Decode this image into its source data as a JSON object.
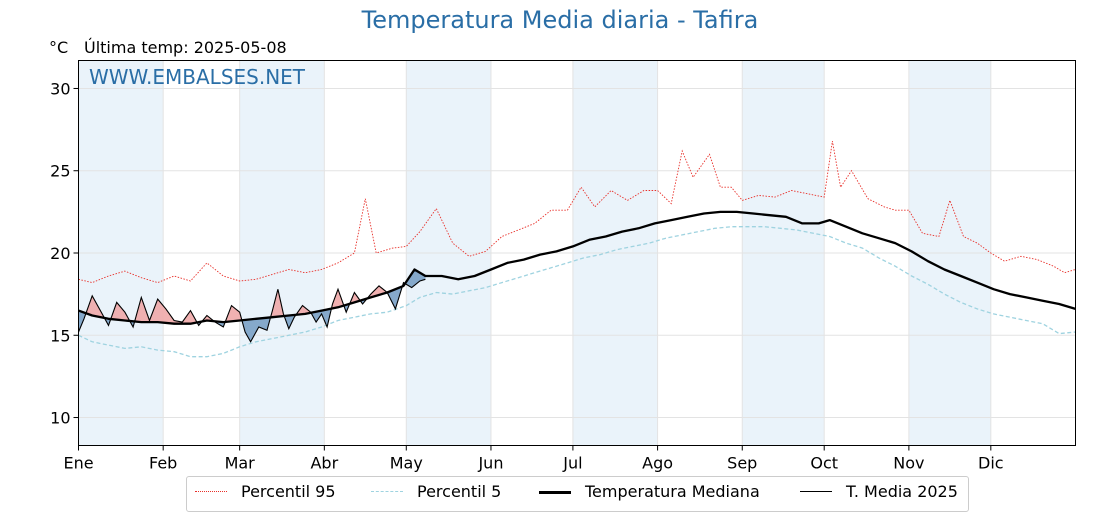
{
  "header": {
    "title": "Temperatura Media diaria - Tafira",
    "unit": "°C",
    "last_update": "Última temp: 2025-05-08"
  },
  "watermark": "WWW.EMBALSES.NET",
  "colors": {
    "p95": "#e8302a",
    "p5": "#9fd3e0",
    "median": "#000000",
    "current": "#000000",
    "above_fill": "#f0a8a8",
    "below_fill": "#7fa4c8",
    "title": "#2a6ea6",
    "band": "#eaf3fa"
  },
  "chart_data": {
    "type": "line",
    "x_tick_labels": [
      "Ene",
      "Feb",
      "Mar",
      "Abr",
      "May",
      "Jun",
      "Jul",
      "Ago",
      "Sep",
      "Oct",
      "Nov",
      "Dic"
    ],
    "month_start_days": [
      1,
      32,
      60,
      91,
      121,
      152,
      182,
      213,
      244,
      274,
      305,
      335
    ],
    "xlim": [
      1,
      366
    ],
    "ylim": [
      8.3,
      31.7
    ],
    "y_ticks": [
      10,
      15,
      20,
      25,
      30
    ],
    "grid": true,
    "legend_placement": "bottom-center",
    "series": [
      {
        "name": "Percentil 95",
        "style": "dotted-red",
        "points": [
          [
            1,
            18.4
          ],
          [
            6,
            18.2
          ],
          [
            12,
            18.6
          ],
          [
            18,
            18.9
          ],
          [
            24,
            18.5
          ],
          [
            30,
            18.2
          ],
          [
            36,
            18.6
          ],
          [
            42,
            18.3
          ],
          [
            48,
            19.4
          ],
          [
            54,
            18.6
          ],
          [
            60,
            18.3
          ],
          [
            66,
            18.4
          ],
          [
            72,
            18.7
          ],
          [
            78,
            19.0
          ],
          [
            84,
            18.8
          ],
          [
            90,
            19.0
          ],
          [
            96,
            19.4
          ],
          [
            102,
            20.0
          ],
          [
            106,
            23.3
          ],
          [
            110,
            20.0
          ],
          [
            116,
            20.3
          ],
          [
            121,
            20.4
          ],
          [
            126,
            21.3
          ],
          [
            132,
            22.7
          ],
          [
            138,
            20.6
          ],
          [
            144,
            19.8
          ],
          [
            150,
            20.1
          ],
          [
            156,
            21.0
          ],
          [
            162,
            21.4
          ],
          [
            168,
            21.8
          ],
          [
            174,
            22.6
          ],
          [
            180,
            22.6
          ],
          [
            185,
            24.0
          ],
          [
            190,
            22.8
          ],
          [
            196,
            23.8
          ],
          [
            202,
            23.2
          ],
          [
            208,
            23.8
          ],
          [
            213,
            23.8
          ],
          [
            218,
            23.0
          ],
          [
            222,
            26.2
          ],
          [
            226,
            24.6
          ],
          [
            232,
            26.0
          ],
          [
            236,
            24.0
          ],
          [
            240,
            24.0
          ],
          [
            244,
            23.2
          ],
          [
            250,
            23.5
          ],
          [
            256,
            23.4
          ],
          [
            262,
            23.8
          ],
          [
            268,
            23.6
          ],
          [
            274,
            23.4
          ],
          [
            277,
            26.8
          ],
          [
            280,
            24.0
          ],
          [
            284,
            25.0
          ],
          [
            290,
            23.3
          ],
          [
            296,
            22.8
          ],
          [
            300,
            22.6
          ],
          [
            305,
            22.6
          ],
          [
            310,
            21.2
          ],
          [
            316,
            21.0
          ],
          [
            320,
            23.2
          ],
          [
            325,
            21.0
          ],
          [
            330,
            20.6
          ],
          [
            335,
            20.0
          ],
          [
            340,
            19.5
          ],
          [
            346,
            19.8
          ],
          [
            352,
            19.6
          ],
          [
            358,
            19.2
          ],
          [
            362,
            18.8
          ],
          [
            366,
            19.0
          ]
        ]
      },
      {
        "name": "Percentil 5",
        "style": "dashed-lightblue",
        "points": [
          [
            1,
            15.0
          ],
          [
            6,
            14.6
          ],
          [
            12,
            14.4
          ],
          [
            18,
            14.2
          ],
          [
            24,
            14.3
          ],
          [
            30,
            14.1
          ],
          [
            36,
            14.0
          ],
          [
            42,
            13.7
          ],
          [
            48,
            13.7
          ],
          [
            54,
            13.9
          ],
          [
            60,
            14.3
          ],
          [
            66,
            14.6
          ],
          [
            72,
            14.8
          ],
          [
            78,
            15.0
          ],
          [
            84,
            15.2
          ],
          [
            90,
            15.5
          ],
          [
            96,
            15.9
          ],
          [
            102,
            16.1
          ],
          [
            108,
            16.3
          ],
          [
            114,
            16.4
          ],
          [
            121,
            16.8
          ],
          [
            126,
            17.3
          ],
          [
            132,
            17.6
          ],
          [
            138,
            17.5
          ],
          [
            144,
            17.7
          ],
          [
            150,
            17.9
          ],
          [
            156,
            18.2
          ],
          [
            162,
            18.5
          ],
          [
            168,
            18.8
          ],
          [
            174,
            19.1
          ],
          [
            180,
            19.4
          ],
          [
            186,
            19.7
          ],
          [
            192,
            19.9
          ],
          [
            198,
            20.2
          ],
          [
            204,
            20.4
          ],
          [
            210,
            20.6
          ],
          [
            216,
            20.9
          ],
          [
            222,
            21.1
          ],
          [
            228,
            21.3
          ],
          [
            234,
            21.5
          ],
          [
            240,
            21.6
          ],
          [
            246,
            21.6
          ],
          [
            252,
            21.6
          ],
          [
            258,
            21.5
          ],
          [
            264,
            21.4
          ],
          [
            270,
            21.2
          ],
          [
            276,
            21.0
          ],
          [
            282,
            20.6
          ],
          [
            288,
            20.3
          ],
          [
            294,
            19.7
          ],
          [
            300,
            19.2
          ],
          [
            306,
            18.6
          ],
          [
            312,
            18.1
          ],
          [
            318,
            17.5
          ],
          [
            324,
            17.0
          ],
          [
            330,
            16.6
          ],
          [
            336,
            16.3
          ],
          [
            342,
            16.1
          ],
          [
            348,
            15.9
          ],
          [
            354,
            15.7
          ],
          [
            360,
            15.1
          ],
          [
            366,
            15.2
          ]
        ]
      },
      {
        "name": "Temperatura Mediana",
        "style": "thick-black",
        "points": [
          [
            1,
            16.5
          ],
          [
            6,
            16.2
          ],
          [
            12,
            16.0
          ],
          [
            18,
            15.9
          ],
          [
            24,
            15.8
          ],
          [
            30,
            15.8
          ],
          [
            36,
            15.7
          ],
          [
            42,
            15.7
          ],
          [
            48,
            15.9
          ],
          [
            54,
            15.8
          ],
          [
            60,
            15.9
          ],
          [
            66,
            16.0
          ],
          [
            72,
            16.1
          ],
          [
            78,
            16.2
          ],
          [
            84,
            16.3
          ],
          [
            90,
            16.5
          ],
          [
            96,
            16.7
          ],
          [
            102,
            17.0
          ],
          [
            108,
            17.3
          ],
          [
            114,
            17.6
          ],
          [
            120,
            18.0
          ],
          [
            124,
            19.0
          ],
          [
            128,
            18.6
          ],
          [
            134,
            18.6
          ],
          [
            140,
            18.4
          ],
          [
            146,
            18.6
          ],
          [
            152,
            19.0
          ],
          [
            158,
            19.4
          ],
          [
            164,
            19.6
          ],
          [
            170,
            19.9
          ],
          [
            176,
            20.1
          ],
          [
            182,
            20.4
          ],
          [
            188,
            20.8
          ],
          [
            194,
            21.0
          ],
          [
            200,
            21.3
          ],
          [
            206,
            21.5
          ],
          [
            212,
            21.8
          ],
          [
            218,
            22.0
          ],
          [
            224,
            22.2
          ],
          [
            230,
            22.4
          ],
          [
            236,
            22.5
          ],
          [
            242,
            22.5
          ],
          [
            248,
            22.4
          ],
          [
            254,
            22.3
          ],
          [
            260,
            22.2
          ],
          [
            266,
            21.8
          ],
          [
            272,
            21.8
          ],
          [
            276,
            22.0
          ],
          [
            282,
            21.6
          ],
          [
            288,
            21.2
          ],
          [
            294,
            20.9
          ],
          [
            300,
            20.6
          ],
          [
            306,
            20.1
          ],
          [
            312,
            19.5
          ],
          [
            318,
            19.0
          ],
          [
            324,
            18.6
          ],
          [
            330,
            18.2
          ],
          [
            336,
            17.8
          ],
          [
            342,
            17.5
          ],
          [
            348,
            17.3
          ],
          [
            354,
            17.1
          ],
          [
            360,
            16.9
          ],
          [
            366,
            16.6
          ]
        ]
      },
      {
        "name": "T. Media 2025",
        "style": "thin-black",
        "points": [
          [
            1,
            15.2
          ],
          [
            3,
            16.0
          ],
          [
            6,
            17.4
          ],
          [
            9,
            16.5
          ],
          [
            12,
            15.6
          ],
          [
            15,
            17.0
          ],
          [
            18,
            16.4
          ],
          [
            21,
            15.5
          ],
          [
            24,
            17.3
          ],
          [
            27,
            15.9
          ],
          [
            30,
            17.2
          ],
          [
            33,
            16.6
          ],
          [
            36,
            15.9
          ],
          [
            39,
            15.8
          ],
          [
            42,
            16.5
          ],
          [
            45,
            15.6
          ],
          [
            48,
            16.2
          ],
          [
            51,
            15.8
          ],
          [
            54,
            15.5
          ],
          [
            57,
            16.8
          ],
          [
            60,
            16.4
          ],
          [
            62,
            15.2
          ],
          [
            64,
            14.6
          ],
          [
            67,
            15.5
          ],
          [
            70,
            15.3
          ],
          [
            72,
            16.5
          ],
          [
            74,
            17.8
          ],
          [
            76,
            16.3
          ],
          [
            78,
            15.4
          ],
          [
            80,
            16.1
          ],
          [
            83,
            16.8
          ],
          [
            86,
            16.4
          ],
          [
            88,
            15.8
          ],
          [
            90,
            16.3
          ],
          [
            92,
            15.5
          ],
          [
            94,
            16.9
          ],
          [
            96,
            17.8
          ],
          [
            99,
            16.4
          ],
          [
            102,
            17.6
          ],
          [
            105,
            16.9
          ],
          [
            108,
            17.5
          ],
          [
            111,
            18.0
          ],
          [
            114,
            17.6
          ],
          [
            117,
            16.6
          ],
          [
            120,
            18.2
          ],
          [
            123,
            17.9
          ],
          [
            126,
            18.3
          ],
          [
            128,
            18.4
          ]
        ]
      }
    ]
  },
  "legend": {
    "items": [
      {
        "label": "Percentil 95"
      },
      {
        "label": "Percentil 5"
      },
      {
        "label": "Temperatura Mediana"
      },
      {
        "label": "T. Media 2025"
      }
    ]
  }
}
